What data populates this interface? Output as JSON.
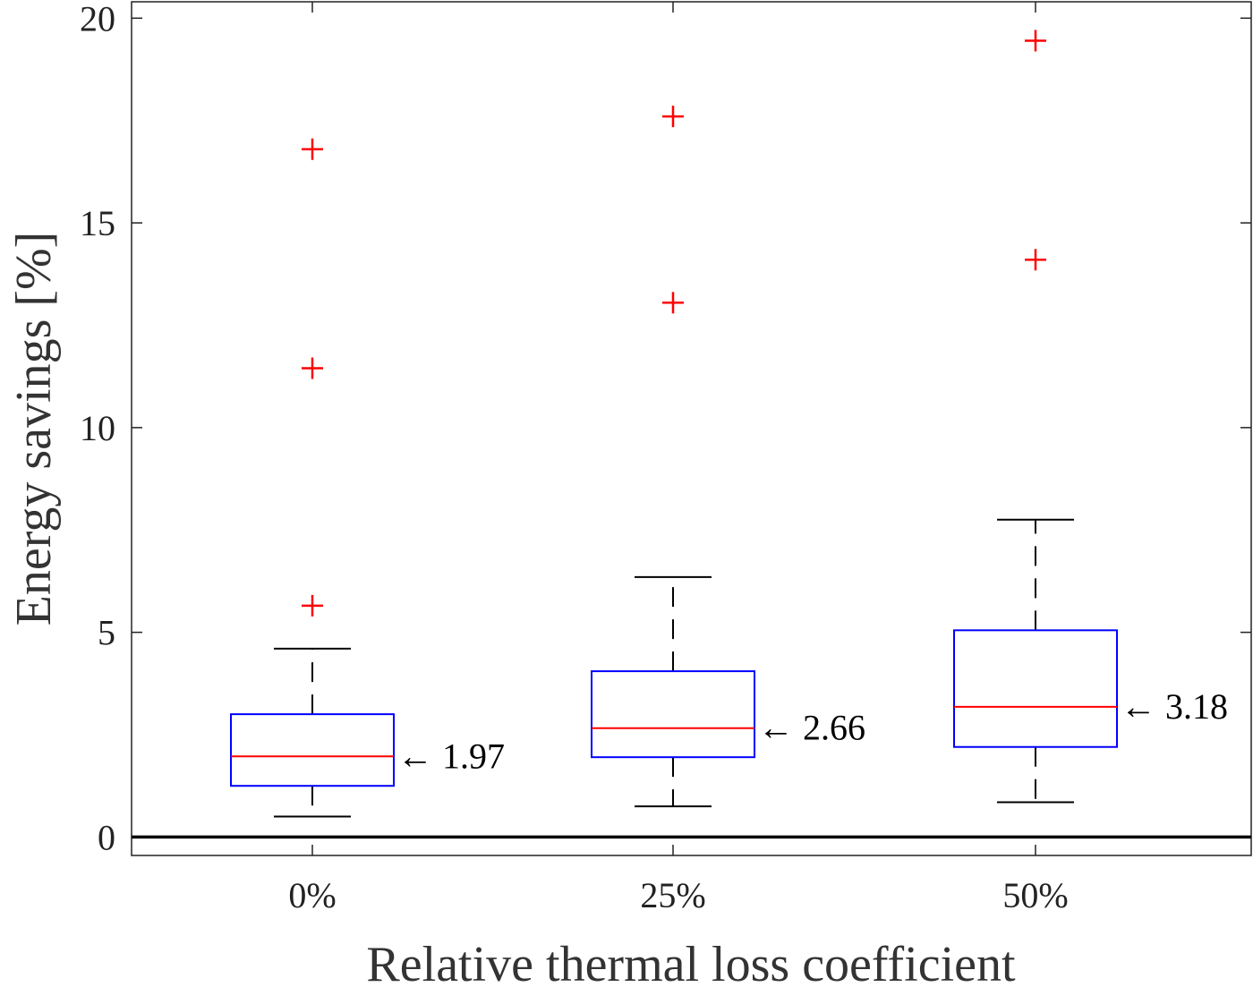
{
  "chart_data": {
    "type": "box",
    "title": "",
    "xlabel": "Relative thermal loss coefficient",
    "ylabel": "Energy savings [%]",
    "ylim": [
      -0.45,
      20.4
    ],
    "y_ticks": [
      0,
      5,
      10,
      15,
      20
    ],
    "y_tick_labels": [
      "0",
      "5",
      "10",
      "15",
      "20"
    ],
    "categories": [
      "0%",
      "25%",
      "50%"
    ],
    "reference_line_y": 0,
    "boxes": [
      {
        "category": "0%",
        "whisker_low": 0.5,
        "q1": 1.25,
        "median": 1.97,
        "q3": 3.0,
        "whisker_high": 4.6,
        "outliers": [
          5.65,
          11.45,
          16.8
        ],
        "median_label": "← 1.97"
      },
      {
        "category": "25%",
        "whisker_low": 0.75,
        "q1": 1.95,
        "median": 2.66,
        "q3": 4.05,
        "whisker_high": 6.35,
        "outliers": [
          13.05,
          17.6
        ],
        "median_label": "← 2.66"
      },
      {
        "category": "50%",
        "whisker_low": 0.85,
        "q1": 2.2,
        "median": 3.18,
        "q3": 5.05,
        "whisker_high": 7.75,
        "outliers": [
          14.1,
          19.45
        ],
        "median_label": "← 3.18"
      }
    ],
    "colors": {
      "box": "#0000ff",
      "median": "#ff0000",
      "outlier": "#ff0000",
      "whisker": "#000000",
      "reference_line": "#000000"
    }
  }
}
